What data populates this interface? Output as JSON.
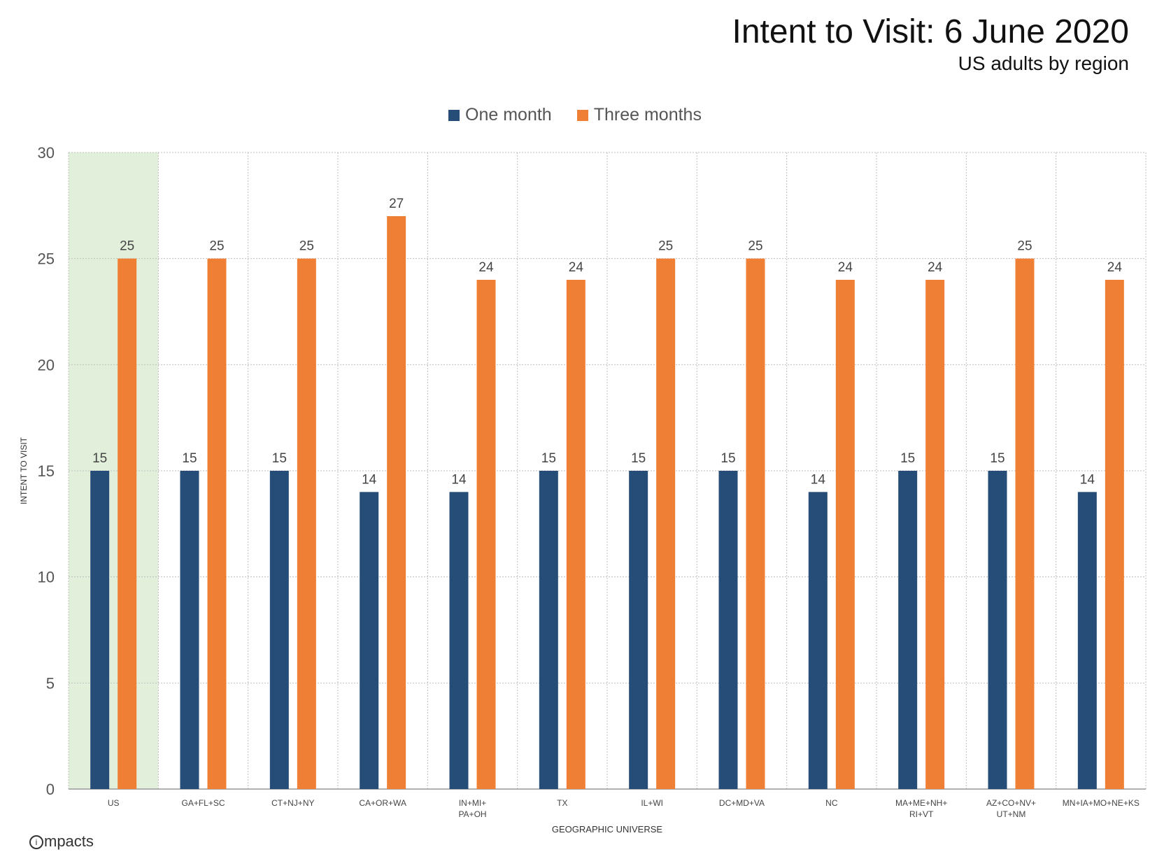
{
  "title": "Intent to Visit: 6 June 2020",
  "subtitle": "US adults by region",
  "logo_text": "mpacts",
  "logo_icon": "i",
  "colors": {
    "one_month": "#264D78",
    "three_months": "#F07F36",
    "highlight": "#E2EFDA",
    "grid": "#BFBFBF"
  },
  "legend": [
    "One month",
    "Three months"
  ],
  "chart_data": {
    "type": "bar",
    "title": "Intent to Visit: 6 June 2020",
    "subtitle": "US adults by region",
    "xlabel": "GEOGRAPHIC UNIVERSE",
    "ylabel": "INTENT TO VISIT",
    "ylim": [
      0,
      30
    ],
    "yticks": [
      0,
      5,
      10,
      15,
      20,
      25,
      30
    ],
    "grid": true,
    "legend_position": "top",
    "highlighted_category": "US",
    "categories": [
      "US",
      "GA+FL+SC",
      "CT+NJ+NY",
      "CA+OR+WA",
      "IN+MI+\nPA+OH",
      "TX",
      "IL+WI",
      "DC+MD+VA",
      "NC",
      "MA+ME+NH+\nRI+VT",
      "AZ+CO+NV+\nUT+NM",
      "MN+IA+MO+NE+KS"
    ],
    "series": [
      {
        "name": "One month",
        "values": [
          15,
          15,
          15,
          14,
          14,
          15,
          15,
          15,
          14,
          15,
          15,
          14
        ]
      },
      {
        "name": "Three months",
        "values": [
          25,
          25,
          25,
          27,
          24,
          24,
          25,
          25,
          24,
          24,
          25,
          24
        ]
      }
    ]
  }
}
